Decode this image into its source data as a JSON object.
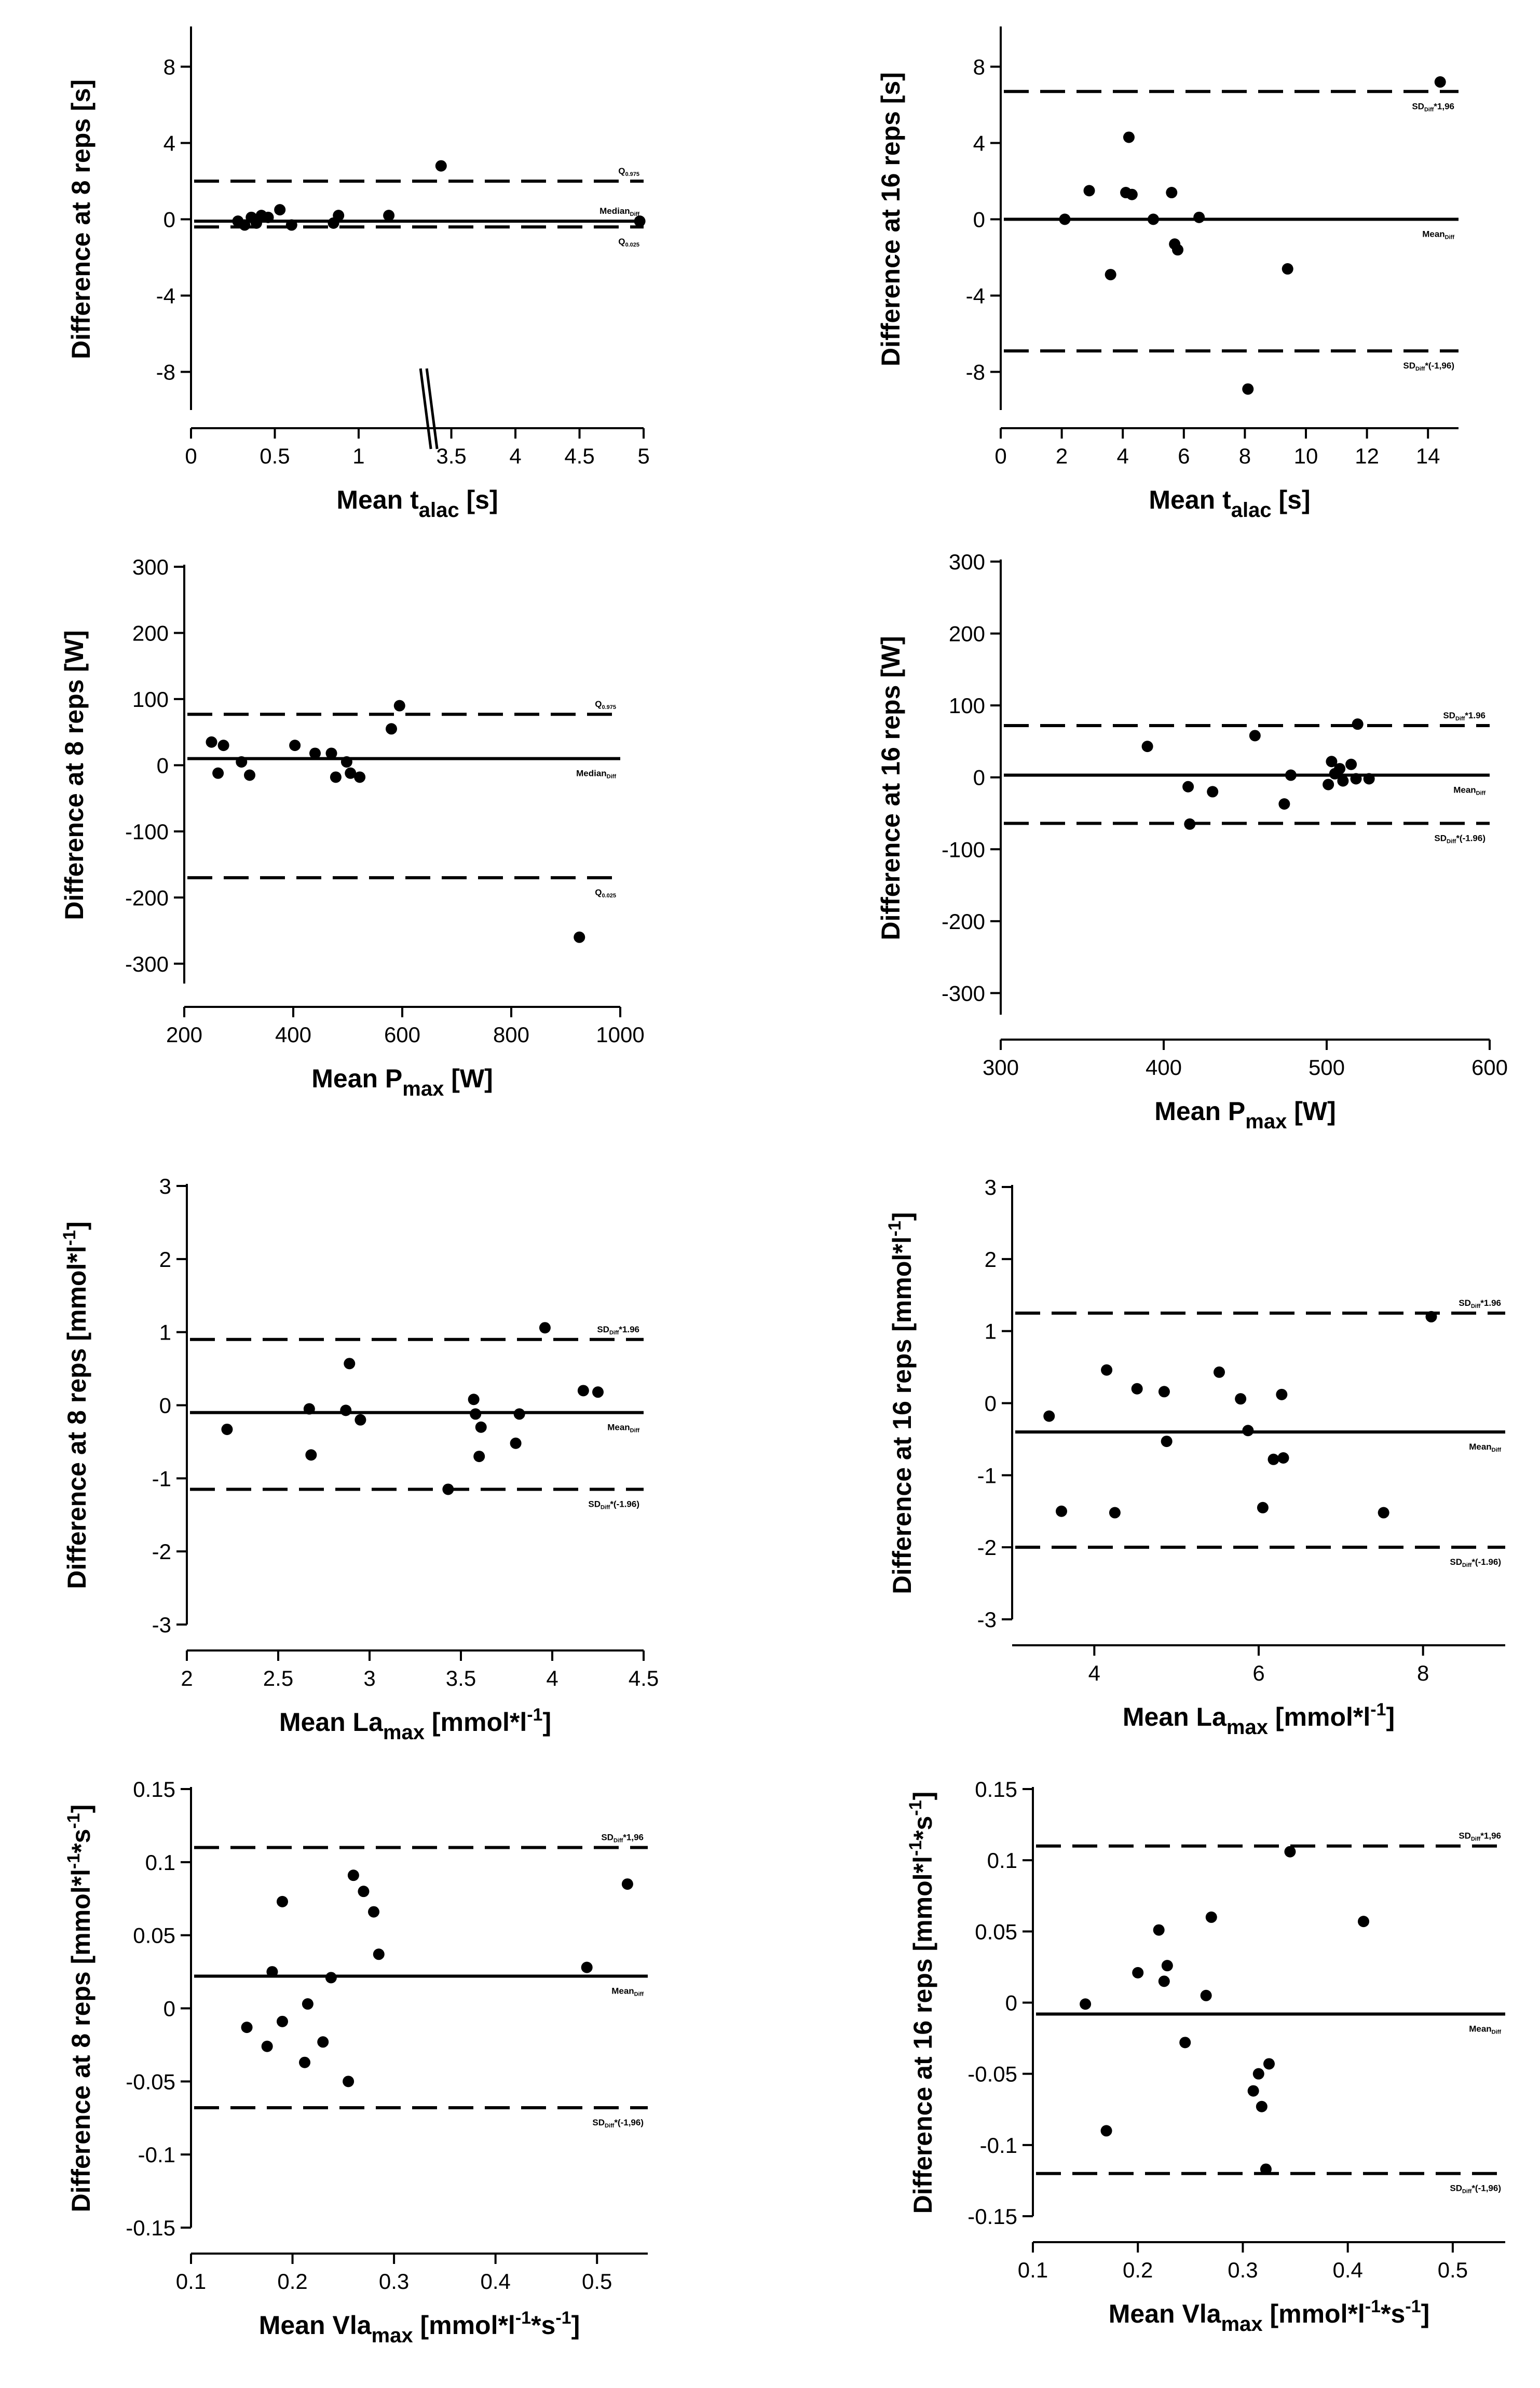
{
  "charts": [
    {
      "type": "scatter",
      "id": "t-alac-8",
      "xlabel": "Mean t",
      "xlabel_sub": "alac",
      "xlabel_unit": " [s]",
      "ylabel": "Difference at 8 reps [s]",
      "xlim": [
        0,
        5
      ],
      "ylim": [
        -10,
        10
      ],
      "yticks": [
        -8,
        -4,
        0,
        4,
        8
      ],
      "xticks": [
        {
          "v": 0,
          "label": "0"
        },
        {
          "v": 0.5,
          "label": "0.5"
        },
        {
          "v": 1,
          "label": "1"
        },
        {
          "v": 3.5,
          "label": "3.5"
        },
        {
          "v": 4,
          "label": "4"
        },
        {
          "v": 4.5,
          "label": "4.5"
        },
        {
          "v": 5,
          "label": "5"
        }
      ],
      "axis_break": 1.4,
      "xmap": [
        [
          0,
          0
        ],
        [
          1.4,
          1.4
        ],
        [
          3.3,
          1.4
        ],
        [
          5,
          2.7
        ]
      ],
      "points": [
        [
          0.28,
          -0.1
        ],
        [
          0.32,
          -0.3
        ],
        [
          0.36,
          0.1
        ],
        [
          0.39,
          -0.2
        ],
        [
          0.42,
          0.2
        ],
        [
          0.46,
          0.1
        ],
        [
          0.53,
          0.5
        ],
        [
          0.6,
          -0.3
        ],
        [
          0.85,
          -0.2
        ],
        [
          0.88,
          0.2
        ],
        [
          1.18,
          0.2
        ],
        [
          3.42,
          2.8
        ],
        [
          4.97,
          -0.1
        ]
      ],
      "lines": [
        {
          "y": 2.0,
          "style": "dashed",
          "label": "Q",
          "label_sub": "0.975",
          "label_pos": "above"
        },
        {
          "y": -0.1,
          "style": "solid",
          "label": "Median",
          "label_sub": "Diff",
          "label_pos": "above"
        },
        {
          "y": -0.4,
          "style": "dashed",
          "label": "Q",
          "label_sub": "0.025",
          "label_pos": "below"
        }
      ]
    },
    {
      "type": "scatter",
      "id": "t-alac-16",
      "xlabel": "Mean t",
      "xlabel_sub": "alac",
      "xlabel_unit": " [s]",
      "ylabel": "Difference at 16 reps [s]",
      "xlim": [
        0,
        15
      ],
      "ylim": [
        -10,
        10
      ],
      "yticks": [
        -8,
        -4,
        0,
        4,
        8
      ],
      "xticks": [
        {
          "v": 0,
          "label": "0"
        },
        {
          "v": 2,
          "label": "2"
        },
        {
          "v": 4,
          "label": "4"
        },
        {
          "v": 6,
          "label": "6"
        },
        {
          "v": 8,
          "label": "8"
        },
        {
          "v": 10,
          "label": "10"
        },
        {
          "v": 12,
          "label": "12"
        },
        {
          "v": 14,
          "label": "14"
        }
      ],
      "points": [
        [
          2.1,
          0.0
        ],
        [
          2.9,
          1.5
        ],
        [
          3.6,
          -2.9
        ],
        [
          4.1,
          1.4
        ],
        [
          4.2,
          4.3
        ],
        [
          4.3,
          1.3
        ],
        [
          5.0,
          0.0
        ],
        [
          5.6,
          1.4
        ],
        [
          5.7,
          -1.3
        ],
        [
          5.8,
          -1.6
        ],
        [
          6.5,
          0.1
        ],
        [
          8.1,
          -8.9
        ],
        [
          9.4,
          -2.6
        ],
        [
          14.4,
          7.2
        ]
      ],
      "lines": [
        {
          "y": 6.7,
          "style": "dashed",
          "label": "SD",
          "label_sub": "Diff",
          "label_after": "*1,96",
          "label_pos": "below"
        },
        {
          "y": 0.0,
          "style": "solid",
          "label": "Mean",
          "label_sub": "Diff",
          "label_after": "",
          "label_pos": "below"
        },
        {
          "y": -6.9,
          "style": "dashed",
          "label": "SD",
          "label_sub": "Diff",
          "label_after": "*(-1,96)",
          "label_pos": "below"
        }
      ]
    },
    {
      "type": "scatter",
      "id": "pmax-8",
      "xlabel": "Mean P",
      "xlabel_sub": "max",
      "xlabel_unit": "  [W]",
      "ylabel": "Difference at 8 reps [W]",
      "xlim": [
        200,
        1000
      ],
      "ylim": [
        -330,
        300
      ],
      "yticks": [
        -300,
        -200,
        -100,
        0,
        100,
        200,
        300
      ],
      "xticks": [
        {
          "v": 200,
          "label": "200"
        },
        {
          "v": 400,
          "label": "400"
        },
        {
          "v": 600,
          "label": "600"
        },
        {
          "v": 800,
          "label": "800"
        },
        {
          "v": 1000,
          "label": "1000"
        }
      ],
      "points": [
        [
          250,
          35
        ],
        [
          262,
          -12
        ],
        [
          272,
          30
        ],
        [
          305,
          5
        ],
        [
          320,
          -15
        ],
        [
          403,
          30
        ],
        [
          440,
          18
        ],
        [
          470,
          18
        ],
        [
          478,
          -18
        ],
        [
          498,
          5
        ],
        [
          505,
          -12
        ],
        [
          522,
          -18
        ],
        [
          580,
          55
        ],
        [
          595,
          90
        ],
        [
          925,
          -260
        ]
      ],
      "lines": [
        {
          "y": 77,
          "style": "dashed",
          "label": "Q",
          "label_sub": "0.975",
          "label_pos": "above"
        },
        {
          "y": 10,
          "style": "solid",
          "label": "Median",
          "label_sub": "Diff",
          "label_pos": "below"
        },
        {
          "y": -170,
          "style": "dashed",
          "label": "Q",
          "label_sub": "0.025",
          "label_pos": "below"
        }
      ]
    },
    {
      "type": "scatter",
      "id": "pmax-16",
      "xlabel": "Mean P",
      "xlabel_sub": "max",
      "xlabel_unit": "  [W]",
      "ylabel": "Difference at 16 reps [W]",
      "xlim": [
        300,
        600
      ],
      "ylim": [
        -330,
        300
      ],
      "yticks": [
        -300,
        -200,
        -100,
        0,
        100,
        200,
        300
      ],
      "xticks": [
        {
          "v": 300,
          "label": "300"
        },
        {
          "v": 400,
          "label": "400"
        },
        {
          "v": 500,
          "label": "500"
        },
        {
          "v": 600,
          "label": "600"
        }
      ],
      "points": [
        [
          390,
          43
        ],
        [
          415,
          -13
        ],
        [
          416,
          -65
        ],
        [
          430,
          -20
        ],
        [
          456,
          58
        ],
        [
          474,
          -37
        ],
        [
          478,
          3
        ],
        [
          501,
          -10
        ],
        [
          503,
          22
        ],
        [
          505,
          5
        ],
        [
          508,
          12
        ],
        [
          510,
          -5
        ],
        [
          515,
          18
        ],
        [
          518,
          -2
        ],
        [
          519,
          74
        ],
        [
          526,
          -2
        ]
      ],
      "lines": [
        {
          "y": 72,
          "style": "dashed",
          "label": "SD",
          "label_sub": "Diff",
          "label_after": "*1.96",
          "label_pos": "above"
        },
        {
          "y": 3,
          "style": "solid",
          "label": "Mean",
          "label_sub": "Diff",
          "label_after": "",
          "label_pos": "below"
        },
        {
          "y": -64,
          "style": "dashed",
          "label": "SD",
          "label_sub": "Diff",
          "label_after": "*(-1.96)",
          "label_pos": "below"
        }
      ]
    },
    {
      "type": "scatter",
      "id": "lamax-8",
      "xlabel": "Mean La",
      "xlabel_sub": "max",
      "xlabel_unit": " [mmol*l",
      "xlabel_sup": "-1",
      "xlabel_end": "]",
      "ylabel": "Difference at 8 reps [mmol*l",
      "ylabel_sup": "-1",
      "ylabel_end": "]",
      "xlim": [
        2,
        4.5
      ],
      "ylim": [
        -3,
        3
      ],
      "yticks": [
        -3,
        -2,
        -1,
        0,
        1,
        2,
        3
      ],
      "xticks": [
        {
          "v": 2,
          "label": "2"
        },
        {
          "v": 2.5,
          "label": "2.5"
        },
        {
          "v": 3,
          "label": "3"
        },
        {
          "v": 3.5,
          "label": "3.5"
        },
        {
          "v": 4,
          "label": "4"
        },
        {
          "v": 4.5,
          "label": "4.5"
        }
      ],
      "points": [
        [
          2.22,
          -0.33
        ],
        [
          2.67,
          -0.05
        ],
        [
          2.68,
          -0.68
        ],
        [
          2.87,
          -0.07
        ],
        [
          2.89,
          0.57
        ],
        [
          2.95,
          -0.2
        ],
        [
          3.43,
          -1.15
        ],
        [
          3.57,
          0.08
        ],
        [
          3.58,
          -0.12
        ],
        [
          3.6,
          -0.7
        ],
        [
          3.61,
          -0.3
        ],
        [
          3.8,
          -0.52
        ],
        [
          3.82,
          -0.12
        ],
        [
          3.96,
          1.06
        ],
        [
          4.17,
          0.2
        ],
        [
          4.25,
          0.18
        ]
      ],
      "lines": [
        {
          "y": 0.9,
          "style": "dashed",
          "label": "SD",
          "label_sub": "Diff",
          "label_after": "*1.96",
          "label_pos": "above"
        },
        {
          "y": -0.1,
          "style": "solid",
          "label": "Mean",
          "label_sub": "Diff",
          "label_after": "",
          "label_pos": "below"
        },
        {
          "y": -1.15,
          "style": "dashed",
          "label": "SD",
          "label_sub": "Diff",
          "label_after": "*(-1.96)",
          "label_pos": "below"
        }
      ]
    },
    {
      "type": "scatter",
      "id": "lamax-16",
      "xlabel": "Mean La",
      "xlabel_sub": "max",
      "xlabel_unit": " [mmol*l",
      "xlabel_sup": "-1",
      "xlabel_end": "]",
      "ylabel": "Difference at 16 reps [mmol*l",
      "ylabel_sup": "-1",
      "ylabel_end": "]",
      "xlim": [
        3,
        9
      ],
      "ylim": [
        -3,
        3
      ],
      "yticks": [
        -3,
        -2,
        -1,
        0,
        1,
        2,
        3
      ],
      "xticks": [
        {
          "v": 4,
          "label": "4"
        },
        {
          "v": 6,
          "label": "6"
        },
        {
          "v": 8,
          "label": "8"
        }
      ],
      "points": [
        [
          3.45,
          -0.18
        ],
        [
          3.6,
          -1.5
        ],
        [
          4.15,
          0.46
        ],
        [
          4.25,
          -1.52
        ],
        [
          4.52,
          0.2
        ],
        [
          4.85,
          0.16
        ],
        [
          4.88,
          -0.53
        ],
        [
          5.52,
          0.43
        ],
        [
          5.78,
          0.06
        ],
        [
          5.87,
          -0.38
        ],
        [
          6.05,
          -1.45
        ],
        [
          6.18,
          -0.78
        ],
        [
          6.28,
          0.12
        ],
        [
          6.3,
          -0.76
        ],
        [
          7.52,
          -1.52
        ],
        [
          8.1,
          1.2
        ]
      ],
      "lines": [
        {
          "y": 1.25,
          "style": "dashed",
          "label": "SD",
          "label_sub": "Diff",
          "label_after": "*1.96",
          "label_pos": "above"
        },
        {
          "y": -0.4,
          "style": "solid",
          "label": "Mean",
          "label_sub": "Diff",
          "label_after": "",
          "label_pos": "below"
        },
        {
          "y": -2.0,
          "style": "dashed",
          "label": "SD",
          "label_sub": "Diff",
          "label_after": "*(-1.96)",
          "label_pos": "below"
        }
      ]
    },
    {
      "type": "scatter",
      "id": "vlamax-8",
      "xlabel": "Mean Vla",
      "xlabel_sub": "max",
      "xlabel_unit": " [mmol*l",
      "xlabel_sup": "-1",
      "xlabel_mid": "*s",
      "xlabel_sup2": "-1",
      "xlabel_end": "]",
      "ylabel": "Difference at 8 reps [mmol*l",
      "ylabel_sup": "-1",
      "ylabel_mid": "*s",
      "ylabel_sup2": "-1",
      "ylabel_end": "]",
      "xlim": [
        0.1,
        0.55
      ],
      "ylim": [
        -0.15,
        0.15
      ],
      "yticks": [
        -0.15,
        -0.1,
        -0.05,
        0,
        0.05,
        0.1,
        0.15
      ],
      "ytick_labels": [
        "-0.15",
        "-0.1",
        "-0.05",
        "0",
        "0.05",
        "0.1",
        "0.15"
      ],
      "xticks": [
        {
          "v": 0.1,
          "label": "0.1"
        },
        {
          "v": 0.2,
          "label": "0.2"
        },
        {
          "v": 0.3,
          "label": "0.3"
        },
        {
          "v": 0.4,
          "label": "0.4"
        },
        {
          "v": 0.5,
          "label": "0.5"
        }
      ],
      "points": [
        [
          0.155,
          -0.013
        ],
        [
          0.175,
          -0.026
        ],
        [
          0.18,
          0.025
        ],
        [
          0.19,
          0.073
        ],
        [
          0.19,
          -0.009
        ],
        [
          0.212,
          -0.037
        ],
        [
          0.215,
          0.003
        ],
        [
          0.23,
          -0.023
        ],
        [
          0.238,
          0.021
        ],
        [
          0.255,
          -0.05
        ],
        [
          0.26,
          0.091
        ],
        [
          0.27,
          0.08
        ],
        [
          0.28,
          0.066
        ],
        [
          0.285,
          0.037
        ],
        [
          0.49,
          0.028
        ],
        [
          0.53,
          0.085
        ]
      ],
      "lines": [
        {
          "y": 0.11,
          "style": "dashed",
          "label": "SD",
          "label_sub": "Diff",
          "label_after": "*1,96",
          "label_pos": "above"
        },
        {
          "y": 0.022,
          "style": "solid",
          "label": "Mean",
          "label_sub": "Diff",
          "label_after": "",
          "label_pos": "below"
        },
        {
          "y": -0.068,
          "style": "dashed",
          "label": "SD",
          "label_sub": "Diff",
          "label_after": "*(-1,96)",
          "label_pos": "below"
        }
      ]
    },
    {
      "type": "scatter",
      "id": "vlamax-16",
      "xlabel": "Mean Vla",
      "xlabel_sub": "max",
      "xlabel_unit": " [mmol*l",
      "xlabel_sup": "-1",
      "xlabel_mid": "*s",
      "xlabel_sup2": "-1",
      "xlabel_end": "]",
      "ylabel": "Difference at 16 reps [mmol*l",
      "ylabel_sup": "-1",
      "ylabel_mid": "*s",
      "ylabel_sup2": "-1",
      "ylabel_end": "]",
      "xlim": [
        0.1,
        0.55
      ],
      "ylim": [
        -0.15,
        0.15
      ],
      "yticks": [
        -0.15,
        -0.1,
        -0.05,
        0,
        0.05,
        0.1,
        0.15
      ],
      "ytick_labels": [
        "-0.15",
        "-0.1",
        "-0.05",
        "0",
        "0.05",
        "0.1",
        "0.15"
      ],
      "xticks": [
        {
          "v": 0.1,
          "label": "0.1"
        },
        {
          "v": 0.2,
          "label": "0.2"
        },
        {
          "v": 0.3,
          "label": "0.3"
        },
        {
          "v": 0.4,
          "label": "0.4"
        },
        {
          "v": 0.5,
          "label": "0.5"
        }
      ],
      "points": [
        [
          0.15,
          -0.001
        ],
        [
          0.17,
          -0.09
        ],
        [
          0.2,
          0.021
        ],
        [
          0.22,
          0.051
        ],
        [
          0.225,
          0.015
        ],
        [
          0.228,
          0.026
        ],
        [
          0.245,
          -0.028
        ],
        [
          0.265,
          0.005
        ],
        [
          0.27,
          0.06
        ],
        [
          0.31,
          -0.062
        ],
        [
          0.315,
          -0.05
        ],
        [
          0.318,
          -0.073
        ],
        [
          0.322,
          -0.117
        ],
        [
          0.325,
          -0.043
        ],
        [
          0.345,
          0.106
        ],
        [
          0.415,
          0.057
        ]
      ],
      "lines": [
        {
          "y": 0.11,
          "style": "dashed",
          "label": "SD",
          "label_sub": "Diff",
          "label_after": "*1,96",
          "label_pos": "above"
        },
        {
          "y": -0.008,
          "style": "solid",
          "label": "Mean",
          "label_sub": "Diff",
          "label_after": "",
          "label_pos": "below"
        },
        {
          "y": -0.12,
          "style": "dashed",
          "label": "SD",
          "label_sub": "Diff",
          "label_after": "*(-1,96)",
          "label_pos": "below"
        }
      ]
    }
  ]
}
